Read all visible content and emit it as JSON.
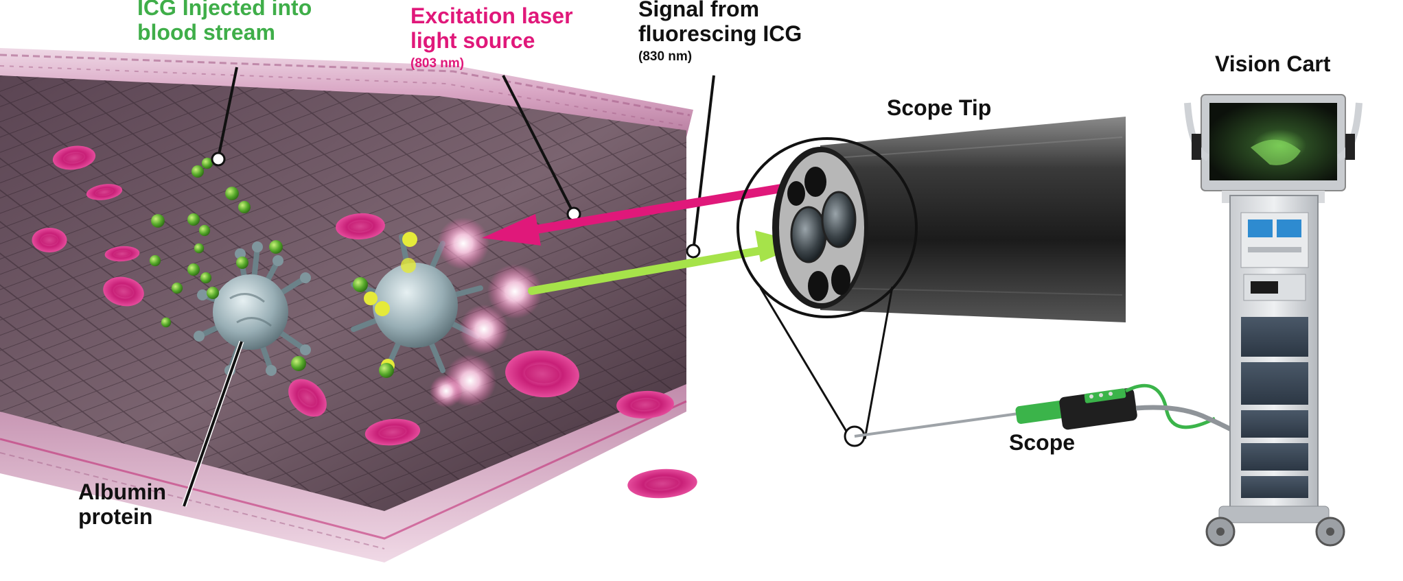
{
  "labels": {
    "icg": {
      "line1": "ICG Injected into",
      "line2": "blood stream"
    },
    "laser": {
      "line1": "Excitation laser",
      "line2": "light source",
      "wavelength": "(803 nm)"
    },
    "signal": {
      "line1": "Signal from",
      "line2": "fluorescing ICG",
      "wavelength": "(830 nm)"
    },
    "scope_tip": "Scope Tip",
    "vision_cart": "Vision Cart",
    "scope": "Scope",
    "albumin": {
      "line1": "Albumin",
      "line2": "protein"
    }
  },
  "colors": {
    "icg_green": "#3fae49",
    "laser_pink": "#e0187a",
    "signal_green": "#a6e34a",
    "text_black": "#111111",
    "rbc_pink": "#e23f95",
    "vessel_wall": "#c98ab0",
    "icg_sphere": "#6cbf2f",
    "albumin_grey": "#9fb3ba",
    "fluorescing": "#ffffff"
  },
  "icons": {
    "albumin": "albumin-protein-icon",
    "rbc": "red-blood-cell-icon",
    "icg": "icg-molecule-icon",
    "scope_tip": "scope-tip-icon",
    "scope": "scope-device-icon",
    "cart": "vision-cart-icon"
  }
}
